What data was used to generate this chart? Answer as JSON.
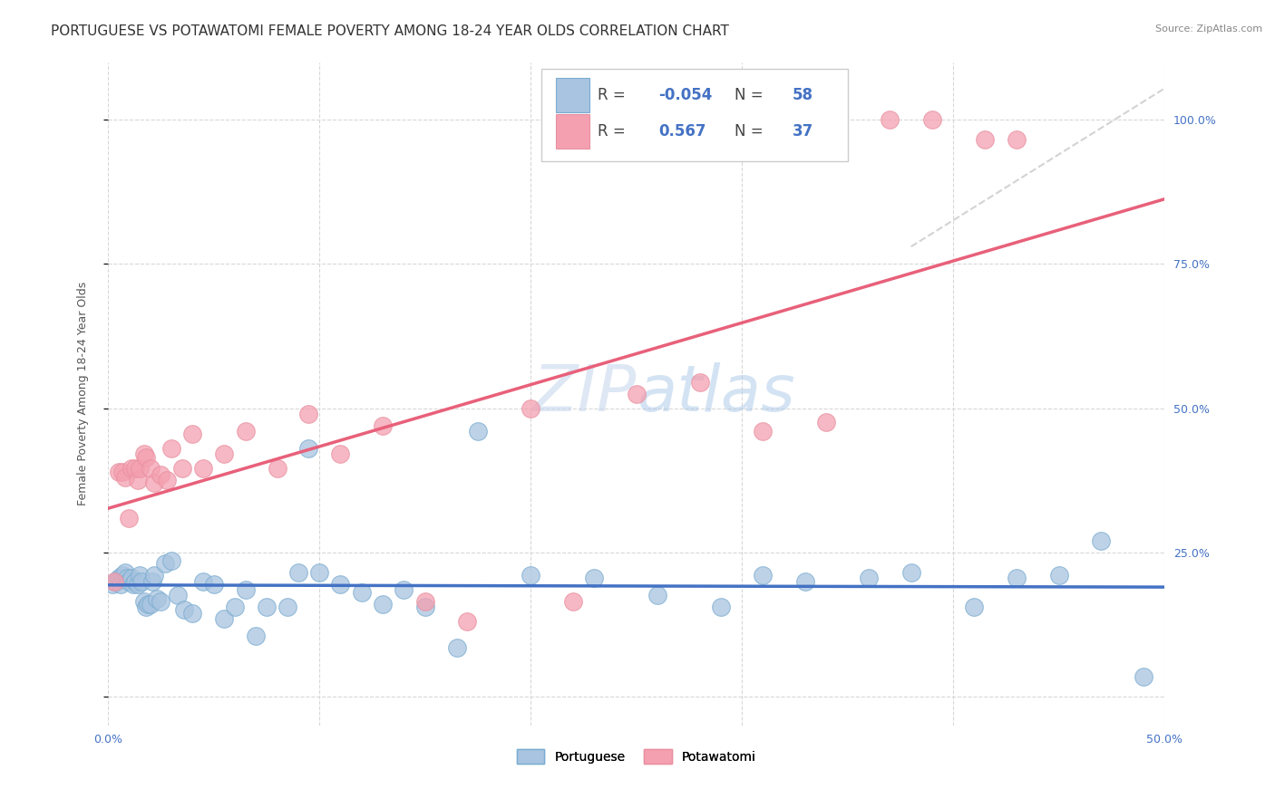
{
  "title": "PORTUGUESE VS POTAWATOMI FEMALE POVERTY AMONG 18-24 YEAR OLDS CORRELATION CHART",
  "source": "Source: ZipAtlas.com",
  "ylabel": "Female Poverty Among 18-24 Year Olds",
  "xlim": [
    0.0,
    0.5
  ],
  "ylim": [
    -0.05,
    1.1
  ],
  "portuguese_R": "-0.054",
  "portuguese_N": "58",
  "potawatomi_R": "0.567",
  "potawatomi_N": "37",
  "portuguese_color": "#a8c4e0",
  "potawatomi_color": "#f4a0b0",
  "portuguese_line_color": "#4472c4",
  "potawatomi_line_color": "#e8607a",
  "watermark_color": "#c8d8ee",
  "grid_color": "#d8d8d8",
  "background_color": "#ffffff",
  "title_fontsize": 11,
  "label_fontsize": 9,
  "tick_fontsize": 9,
  "legend_fontsize": 12,
  "portuguese_x": [
    0.002,
    0.004,
    0.005,
    0.006,
    0.007,
    0.008,
    0.009,
    0.01,
    0.011,
    0.012,
    0.013,
    0.014,
    0.015,
    0.016,
    0.017,
    0.018,
    0.019,
    0.02,
    0.021,
    0.022,
    0.023,
    0.025,
    0.027,
    0.03,
    0.033,
    0.036,
    0.04,
    0.045,
    0.05,
    0.055,
    0.06,
    0.065,
    0.07,
    0.075,
    0.085,
    0.09,
    0.095,
    0.1,
    0.11,
    0.12,
    0.13,
    0.14,
    0.15,
    0.165,
    0.175,
    0.2,
    0.23,
    0.26,
    0.29,
    0.31,
    0.33,
    0.36,
    0.38,
    0.41,
    0.43,
    0.45,
    0.47,
    0.49
  ],
  "portuguese_y": [
    0.195,
    0.2,
    0.205,
    0.195,
    0.21,
    0.215,
    0.205,
    0.2,
    0.205,
    0.195,
    0.2,
    0.195,
    0.21,
    0.2,
    0.165,
    0.155,
    0.16,
    0.16,
    0.2,
    0.21,
    0.17,
    0.165,
    0.23,
    0.235,
    0.175,
    0.15,
    0.145,
    0.2,
    0.195,
    0.135,
    0.155,
    0.185,
    0.105,
    0.155,
    0.155,
    0.215,
    0.43,
    0.215,
    0.195,
    0.18,
    0.16,
    0.185,
    0.155,
    0.085,
    0.46,
    0.21,
    0.205,
    0.175,
    0.155,
    0.21,
    0.2,
    0.205,
    0.215,
    0.155,
    0.205,
    0.21,
    0.27,
    0.035
  ],
  "potawatomi_x": [
    0.003,
    0.005,
    0.007,
    0.008,
    0.01,
    0.011,
    0.013,
    0.014,
    0.015,
    0.017,
    0.018,
    0.02,
    0.022,
    0.025,
    0.028,
    0.03,
    0.035,
    0.04,
    0.045,
    0.055,
    0.065,
    0.08,
    0.095,
    0.11,
    0.13,
    0.15,
    0.17,
    0.2,
    0.22,
    0.25,
    0.28,
    0.31,
    0.34,
    0.37,
    0.39,
    0.415,
    0.43
  ],
  "potawatomi_y": [
    0.2,
    0.39,
    0.39,
    0.38,
    0.31,
    0.395,
    0.395,
    0.375,
    0.395,
    0.42,
    0.415,
    0.395,
    0.37,
    0.385,
    0.375,
    0.43,
    0.395,
    0.455,
    0.395,
    0.42,
    0.46,
    0.395,
    0.49,
    0.42,
    0.47,
    0.165,
    0.13,
    0.5,
    0.165,
    0.525,
    0.545,
    0.46,
    0.475,
    1.0,
    1.0,
    0.965,
    0.965
  ]
}
